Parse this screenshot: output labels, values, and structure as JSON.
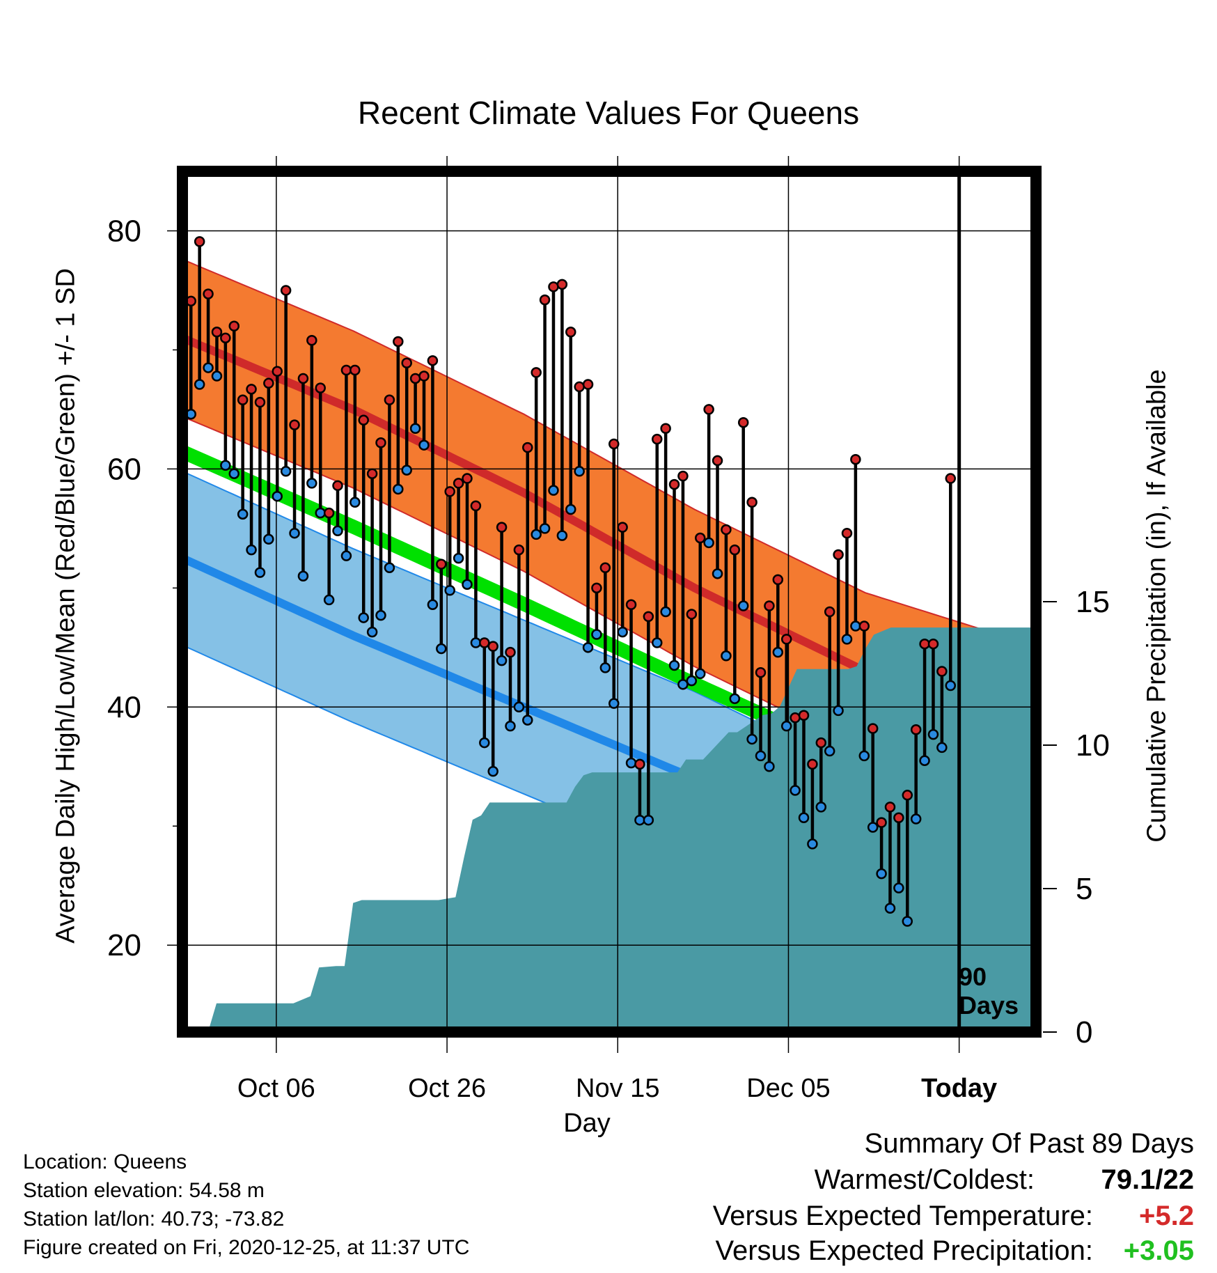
{
  "title": "Recent Climate Values For Queens",
  "y_label_left": "Average Daily High/Low/Mean (Red/Blue/Green) +/- 1 SD",
  "y_label_right": "Cumulative Precipitation (in), If Available",
  "x_label": "Day",
  "days_label": [
    "90",
    "Days"
  ],
  "station_info": [
    "Location: Queens",
    "Station elevation: 54.58 m",
    "Station lat/lon: 40.73; -73.82",
    "Figure created on Fri, 2020-12-25, at 11:37 UTC"
  ],
  "summary": {
    "header": "Summary Of Past 89 Days",
    "warmest_coldest_label": "Warmest/Coldest:",
    "warmest_coldest_value": "79.1/22",
    "temp_label": "Versus Expected Temperature:",
    "temp_value": "+5.2",
    "precip_label": "Versus Expected Precipitation:",
    "precip_value": "+3.05"
  },
  "colors": {
    "high_band": "#f47a30",
    "high_mean": "#cf2a2a",
    "low_band": "#85c1e6",
    "low_mean": "#2088e8",
    "mean_band": "#00e000",
    "precip": "#4a9aa4",
    "high_dot": "#d42a2a",
    "low_dot": "#2a8ae0",
    "overlap": "#981818",
    "temp_value": "#d42a2a",
    "precip_value": "#20c020"
  },
  "chart_data": {
    "type": "line",
    "x_tick_labels": [
      "Oct 06",
      "Oct 26",
      "Nov 15",
      "Dec 05",
      "Today"
    ],
    "x_tick_days": [
      11,
      31,
      51,
      71,
      91
    ],
    "today_day": 91,
    "x_range_days": [
      0,
      100
    ],
    "y_left_range": [
      12.7,
      85
    ],
    "y_left_ticks": [
      20,
      40,
      60,
      80
    ],
    "y_right_range": [
      0,
      30
    ],
    "y_right_ticks": [
      0,
      5,
      10,
      15
    ],
    "normals": {
      "days": [
        0,
        20,
        40,
        60,
        80,
        100
      ],
      "high_mean": [
        71.0,
        65.0,
        58.0,
        50.0,
        43.0,
        38.5
      ],
      "high_sd": 6.6,
      "low_mean": [
        52.5,
        46.0,
        40.0,
        34.0,
        27.0,
        21.5
      ],
      "low_sd": 7.3,
      "mean": [
        61.5,
        55.2,
        48.7,
        42.0,
        35.6,
        33.0
      ],
      "mean_band": [
        61.8,
        55.5,
        49.0,
        42.3,
        35.8,
        33.2
      ]
    },
    "series": [
      {
        "name": "High",
        "values": [
          74.1,
          79.1,
          74.7,
          71.5,
          71.0,
          72.0,
          65.8,
          66.7,
          65.6,
          67.2,
          68.2,
          75.0,
          63.7,
          67.6,
          70.8,
          66.8,
          56.3,
          58.6,
          68.3,
          68.3,
          64.1,
          59.6,
          62.2,
          65.8,
          70.7,
          68.9,
          67.6,
          67.8,
          69.1,
          52.0,
          58.1,
          58.8,
          59.2,
          56.9,
          45.4,
          45.1,
          55.1,
          44.6,
          53.2,
          61.8,
          68.1,
          74.2,
          75.3,
          75.5,
          71.5,
          66.9,
          67.1,
          50.0,
          51.7,
          62.1,
          55.1,
          48.6,
          35.2,
          47.6,
          62.5,
          63.4,
          58.7,
          59.4,
          47.8,
          54.2,
          65.0,
          60.7,
          54.9,
          53.2,
          63.9,
          57.2,
          42.9,
          48.5,
          50.7,
          45.7,
          39.1,
          39.3,
          35.2,
          37.0,
          48.0,
          52.8,
          54.6,
          60.8,
          46.8,
          38.2,
          30.3,
          31.6,
          30.7,
          32.6,
          38.1,
          45.3,
          45.3,
          43.0,
          59.2
        ]
      },
      {
        "name": "Low",
        "values": [
          64.6,
          67.1,
          68.5,
          67.8,
          60.3,
          59.6,
          56.2,
          53.2,
          51.3,
          54.1,
          57.7,
          59.8,
          54.6,
          51.0,
          58.8,
          56.3,
          49.0,
          54.8,
          52.7,
          57.2,
          47.5,
          46.3,
          47.7,
          51.7,
          58.3,
          59.9,
          63.4,
          62.0,
          48.6,
          44.9,
          49.8,
          52.5,
          50.3,
          45.4,
          37.0,
          34.6,
          43.9,
          38.4,
          40.0,
          38.9,
          54.5,
          55.0,
          58.2,
          54.4,
          56.6,
          59.8,
          45.0,
          46.1,
          43.3,
          40.3,
          46.3,
          35.3,
          30.5,
          30.5,
          45.4,
          48.0,
          43.5,
          41.9,
          42.2,
          42.8,
          53.8,
          51.2,
          44.3,
          40.7,
          48.5,
          37.3,
          35.9,
          35.0,
          44.6,
          38.4,
          33.0,
          30.7,
          28.5,
          31.6,
          36.3,
          39.7,
          45.7,
          46.8,
          35.9,
          29.9,
          26.0,
          23.1,
          24.8,
          22.0,
          30.6,
          35.5,
          37.7,
          36.6,
          41.8
        ]
      },
      {
        "name": "Precipitation",
        "days": [
          0,
          3,
          4,
          13,
          15,
          16,
          18,
          19,
          20,
          21,
          30,
          31,
          32,
          33,
          34,
          35,
          36,
          45,
          46,
          47,
          48,
          50,
          58,
          59,
          61,
          64,
          65,
          68,
          69,
          70,
          72,
          78,
          79,
          80,
          81,
          83,
          84,
          95,
          100
        ],
        "values": [
          0,
          0,
          1.0,
          1.0,
          1.25,
          2.25,
          2.3,
          2.3,
          4.5,
          4.6,
          4.6,
          4.65,
          4.7,
          6.1,
          7.4,
          7.55,
          8.0,
          8.0,
          8.55,
          8.95,
          9.05,
          9.05,
          9.05,
          9.5,
          9.5,
          10.45,
          10.45,
          11.05,
          11.1,
          11.35,
          12.65,
          12.65,
          12.75,
          13.35,
          13.85,
          14.1,
          14.1,
          14.1,
          14.1
        ]
      }
    ]
  }
}
